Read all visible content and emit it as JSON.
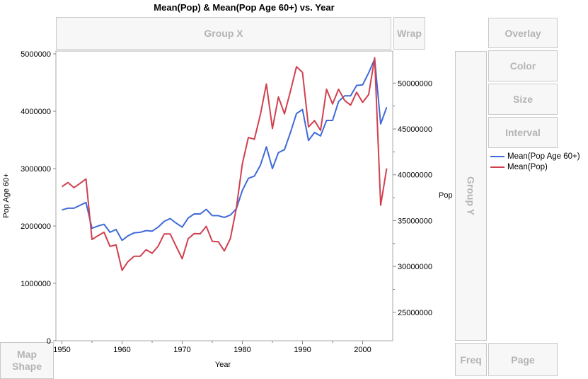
{
  "title": "Mean(Pop) & Mean(Pop Age 60+) vs. Year",
  "zones": {
    "group_x": "Group X",
    "wrap": "Wrap",
    "group_y": "Group Y",
    "overlay": "Overlay",
    "color": "Color",
    "size": "Size",
    "interval": "Interval",
    "map_shape": "Map Shape",
    "freq": "Freq",
    "page": "Page"
  },
  "legend": [
    {
      "label": "Mean(Pop Age 60+)",
      "color": "#3f6ad8"
    },
    {
      "label": "Mean(Pop)",
      "color": "#d0404f"
    }
  ],
  "chart_data": {
    "type": "line",
    "title": "Mean(Pop) & Mean(Pop Age 60+) vs. Year",
    "xlabel": "Year",
    "ylabel": "Pop Age 60+",
    "y2label": "Pop",
    "xlim": [
      1949,
      2005
    ],
    "ylim": [
      0,
      5050000
    ],
    "y2lim": [
      21900000,
      53500000
    ],
    "xticks": [
      1950,
      1960,
      1970,
      1980,
      1990,
      2000
    ],
    "yticks": [
      0,
      1000000,
      2000000,
      3000000,
      4000000,
      5000000
    ],
    "y2ticks": [
      25000000,
      30000000,
      35000000,
      40000000,
      45000000,
      50000000
    ],
    "grid": false,
    "legend_position": "right",
    "x": [
      1950,
      1951,
      1952,
      1953,
      1954,
      1955,
      1956,
      1957,
      1958,
      1959,
      1960,
      1961,
      1962,
      1963,
      1964,
      1965,
      1966,
      1967,
      1968,
      1969,
      1970,
      1971,
      1972,
      1973,
      1974,
      1975,
      1976,
      1977,
      1978,
      1979,
      1980,
      1981,
      1982,
      1983,
      1984,
      1985,
      1986,
      1987,
      1988,
      1989,
      1990,
      1991,
      1992,
      1993,
      1994,
      1995,
      1996,
      1997,
      1998,
      1999,
      2000,
      2001,
      2002,
      2003,
      2004
    ],
    "series": [
      {
        "name": "Mean(Pop Age 60+)",
        "axis": "left",
        "color": "#3f6ad8",
        "values": [
          2280000,
          2310000,
          2310000,
          2360000,
          2410000,
          1960000,
          2000000,
          2030000,
          1890000,
          1940000,
          1750000,
          1830000,
          1880000,
          1890000,
          1920000,
          1910000,
          1980000,
          2080000,
          2130000,
          2050000,
          1980000,
          2140000,
          2210000,
          2210000,
          2290000,
          2180000,
          2180000,
          2150000,
          2190000,
          2300000,
          2620000,
          2830000,
          2870000,
          3060000,
          3380000,
          3000000,
          3280000,
          3330000,
          3630000,
          3960000,
          4030000,
          3490000,
          3630000,
          3570000,
          3840000,
          3840000,
          4170000,
          4270000,
          4270000,
          4450000,
          4460000,
          4670000,
          4910000,
          3780000,
          4070000
        ]
      },
      {
        "name": "Mean(Pop)",
        "axis": "right",
        "color": "#d0404f",
        "values": [
          38700000,
          39160000,
          38600000,
          39060000,
          39550000,
          32950000,
          33360000,
          33740000,
          32190000,
          32360000,
          29580000,
          30540000,
          31110000,
          31110000,
          31830000,
          31440000,
          32210000,
          33540000,
          33540000,
          32190000,
          30850000,
          33030000,
          33590000,
          33570000,
          34380000,
          32750000,
          32700000,
          31700000,
          33030000,
          36350000,
          41200000,
          44070000,
          43870000,
          46570000,
          49900000,
          45040000,
          48490000,
          46650000,
          49130000,
          51790000,
          51170000,
          45220000,
          45910000,
          44840000,
          49330000,
          47720000,
          49330000,
          48110000,
          47600000,
          49000000,
          47900000,
          48750000,
          52760000,
          36680000,
          40700000
        ]
      }
    ]
  }
}
